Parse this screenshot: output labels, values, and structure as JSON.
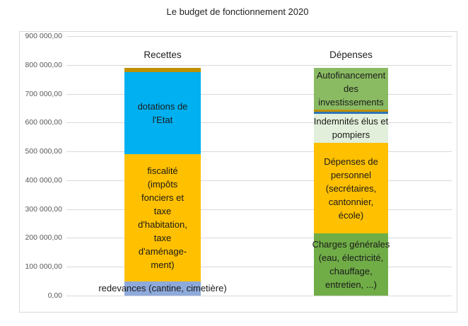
{
  "title": "Le budget de fonctionnement 2020",
  "chart_data": {
    "type": "bar",
    "stacked": true,
    "title": "Le budget de fonctionnement 2020",
    "categories": [
      "Recettes",
      "Dépenses"
    ],
    "ylim": [
      0,
      900000
    ],
    "ytick_step": 100000,
    "grid": true,
    "legend": "none",
    "yticks": [
      {
        "value": 0,
        "label": "0,00"
      },
      {
        "value": 100000,
        "label": "100 000,00"
      },
      {
        "value": 200000,
        "label": "200 000,00"
      },
      {
        "value": 300000,
        "label": "300 000,00"
      },
      {
        "value": 400000,
        "label": "400 000,00"
      },
      {
        "value": 500000,
        "label": "500 000,00"
      },
      {
        "value": 600000,
        "label": "600 000,00"
      },
      {
        "value": 700000,
        "label": "700 000,00"
      },
      {
        "value": 800000,
        "label": "800 000,00"
      },
      {
        "value": 900000,
        "label": "900 000,00"
      }
    ],
    "bars": [
      {
        "name": "recettes",
        "category": "Recettes",
        "total": 790000,
        "segments": [
          {
            "name": "redevances",
            "label": "redevances (cantine, cimetière)",
            "value": 50000,
            "color": "#8EAADB",
            "label_nowrap": true
          },
          {
            "name": "fiscalite",
            "label": "fiscalité\n(impôts\nfonciers et\ntaxe\nd'habitation,\ntaxe\nd'aménage-\nment)",
            "value": 440000,
            "color": "#FFC000"
          },
          {
            "name": "dotations-etat",
            "label": "dotations de\nl'Etat",
            "value": 285000,
            "color": "#00B0F0"
          },
          {
            "name": "autres-recettes",
            "label": "",
            "value": 15000,
            "color": "#BF9000"
          }
        ]
      },
      {
        "name": "depenses",
        "category": "Dépenses",
        "total": 790000,
        "segments": [
          {
            "name": "charges-generales",
            "label": "Charges générales\n(eau, électricité,\nchauffage,\nentretien, ...)",
            "value": 215000,
            "color": "#70AD47"
          },
          {
            "name": "depenses-personnel",
            "label": "Dépenses de\npersonnel\n(secrétaires,\ncantonnier,\nécole)",
            "value": 315000,
            "color": "#FFC000"
          },
          {
            "name": "indemnites-elus-pompiers",
            "label": "Indemnités élus et\npompiers",
            "value": 100000,
            "color": "#E2EFDA"
          },
          {
            "name": "depense-mince-bleue",
            "label": "",
            "value": 7500,
            "color": "#2E75B6"
          },
          {
            "name": "depense-mince-olive",
            "label": "",
            "value": 7500,
            "color": "#BF9000"
          },
          {
            "name": "autofinancement",
            "label": "Autofinancement\ndes\ninvestissements",
            "value": 145000,
            "color": "#8ABB63"
          }
        ]
      }
    ]
  }
}
